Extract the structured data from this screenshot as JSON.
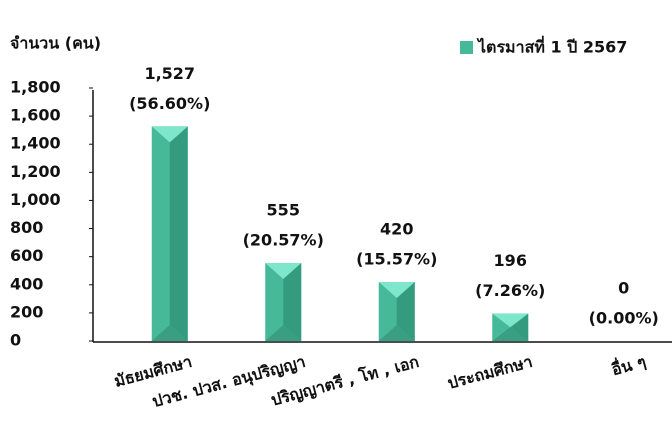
{
  "chart_data": {
    "type": "bar",
    "title": "จำนวน (คน)",
    "categories": [
      "มัธยมศึกษา",
      "ปวช. ปวส. อนุปริญญา",
      "ปริญญาตรี , โท , เอก",
      "ประถมศึกษา",
      "อื่น ๆ"
    ],
    "series": [
      {
        "name": "ไตรมาสที่ 1 ปี 2567",
        "color": "#45b998",
        "values": [
          1527,
          555,
          420,
          196,
          0
        ],
        "value_labels": [
          "1,527",
          "555",
          "420",
          "196",
          "0"
        ],
        "share_labels": [
          "(56.60%)",
          "(20.57%)",
          "(15.57%)",
          "(7.26%)",
          "(0.00%)"
        ]
      }
    ],
    "ylim": [
      0,
      1800
    ],
    "yticks": [
      0,
      200,
      400,
      600,
      800,
      {
        "value": 1000,
        "label": "1,000"
      },
      {
        "value": 1200,
        "label": "1,200"
      },
      {
        "value": 1400,
        "label": "1,400"
      },
      {
        "value": 1600,
        "label": "1,600"
      },
      {
        "value": 1800,
        "label": "1,800"
      }
    ],
    "grid": false
  }
}
